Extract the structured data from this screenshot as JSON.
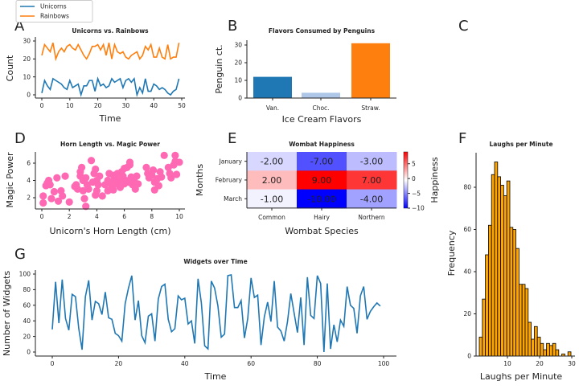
{
  "panel_letters": [
    "A",
    "B",
    "C",
    "D",
    "E",
    "F",
    "G"
  ],
  "chart_data": [
    {
      "id": "A",
      "type": "line",
      "title": "Unicorns vs. Rainbows",
      "xlabel": "Time",
      "ylabel": "Count",
      "xlim": [
        -2.5,
        51
      ],
      "ylim": [
        -2,
        31
      ],
      "xticks": [
        0,
        10,
        20,
        30,
        40,
        50
      ],
      "yticks": [
        0,
        10,
        20,
        30
      ],
      "legend": {
        "placement": "top-left, outside"
      },
      "series": [
        {
          "name": "Unicorns",
          "color": "#1f77b4",
          "values": [
            1,
            8,
            5,
            3,
            9,
            8,
            7,
            6,
            4,
            3,
            8,
            4,
            5,
            6,
            0,
            5,
            5,
            8,
            8,
            2,
            9,
            5,
            6,
            4,
            5,
            9,
            7,
            8,
            9,
            4,
            8,
            9,
            7,
            9,
            0,
            4,
            1,
            9,
            2,
            2,
            6,
            5,
            3,
            4,
            3,
            1,
            0,
            2,
            3,
            9
          ]
        },
        {
          "name": "Rainbows",
          "color": "#ff7f0e",
          "values": [
            22,
            28,
            26,
            24,
            29,
            20,
            24,
            26,
            24,
            27,
            28,
            26,
            25,
            28,
            25,
            22,
            20,
            23,
            27,
            27,
            28,
            25,
            28,
            22,
            29,
            20,
            28,
            24,
            23,
            24,
            21,
            20,
            22,
            23,
            24,
            20,
            22,
            27,
            25,
            28,
            21,
            21,
            26,
            21,
            20,
            28,
            20,
            21,
            21,
            29
          ]
        }
      ]
    },
    {
      "id": "B",
      "type": "bar",
      "title": "Flavors Consumed by Penguins",
      "xlabel": "Ice Cream Flavors",
      "ylabel": "Penguin ct.",
      "categories": [
        "Van.",
        "Choc.",
        "Straw."
      ],
      "values": [
        12,
        3,
        31
      ],
      "colors": [
        "#1f77b4",
        "#aec7e8",
        "#ff7f0e"
      ],
      "yticks": [
        0,
        10,
        20,
        30
      ],
      "ylim": [
        0,
        32.5
      ]
    },
    {
      "id": "D",
      "type": "scatter",
      "title": "Horn Length vs. Magic Power",
      "xlabel": "Unicorn's Horn Length (cm)",
      "ylabel": "Magic Power",
      "xticks": [
        0,
        2,
        4,
        6,
        8,
        10
      ],
      "yticks": [
        2,
        4,
        6
      ],
      "color": "#ff69b4",
      "points": [
        [
          0.1,
          2.2
        ],
        [
          0.1,
          1.4
        ],
        [
          0.3,
          3.4
        ],
        [
          0.4,
          3.7
        ],
        [
          0.5,
          4.0
        ],
        [
          0.6,
          3.5
        ],
        [
          0.7,
          1.9
        ],
        [
          0.9,
          2.7
        ],
        [
          1.1,
          4.3
        ],
        [
          1.2,
          1.6
        ],
        [
          1.4,
          2.8
        ],
        [
          1.5,
          2.2
        ],
        [
          1.7,
          4.5
        ],
        [
          2.0,
          1.5
        ],
        [
          2.4,
          3.3
        ],
        [
          2.5,
          3.5
        ],
        [
          2.6,
          3.0
        ],
        [
          2.8,
          4.5
        ],
        [
          2.8,
          5.0
        ],
        [
          2.9,
          5.5
        ],
        [
          3.0,
          2.8
        ],
        [
          3.0,
          4.0
        ],
        [
          3.1,
          1.9
        ],
        [
          3.2,
          1.0
        ],
        [
          3.2,
          4.3
        ],
        [
          3.3,
          3.5
        ],
        [
          3.4,
          3.0
        ],
        [
          3.6,
          6.3
        ],
        [
          3.7,
          3.8
        ],
        [
          3.8,
          4.8
        ],
        [
          3.9,
          2.3
        ],
        [
          3.9,
          5.3
        ],
        [
          4.0,
          4.0
        ],
        [
          4.0,
          2.8
        ],
        [
          4.1,
          3.5
        ],
        [
          4.2,
          4.5
        ],
        [
          4.4,
          2.2
        ],
        [
          4.6,
          3.5
        ],
        [
          4.8,
          4.0
        ],
        [
          4.8,
          2.8
        ],
        [
          4.9,
          4.8
        ],
        [
          5.0,
          3.8
        ],
        [
          5.1,
          3.3
        ],
        [
          5.2,
          4.6
        ],
        [
          5.2,
          2.9
        ],
        [
          5.3,
          4.2
        ],
        [
          5.4,
          3.6
        ],
        [
          5.5,
          4.8
        ],
        [
          5.6,
          4.0
        ],
        [
          5.7,
          3.2
        ],
        [
          5.8,
          5.0
        ],
        [
          5.9,
          4.5
        ],
        [
          6.0,
          3.6
        ],
        [
          6.0,
          5.4
        ],
        [
          6.1,
          4.0
        ],
        [
          6.2,
          5.5
        ],
        [
          6.3,
          3.8
        ],
        [
          6.4,
          5.8
        ],
        [
          6.4,
          6.1
        ],
        [
          6.5,
          4.4
        ],
        [
          6.6,
          3.5
        ],
        [
          6.7,
          4.0
        ],
        [
          6.8,
          3.0
        ],
        [
          6.9,
          4.5
        ],
        [
          7.0,
          3.6
        ],
        [
          7.6,
          5.5
        ],
        [
          7.7,
          4.8
        ],
        [
          7.8,
          4.3
        ],
        [
          8.0,
          4.6
        ],
        [
          8.1,
          5.2
        ],
        [
          8.2,
          3.8
        ],
        [
          8.2,
          2.9
        ],
        [
          8.4,
          4.2
        ],
        [
          8.5,
          3.4
        ],
        [
          8.6,
          5.0
        ],
        [
          8.7,
          4.4
        ],
        [
          8.9,
          6.9
        ],
        [
          9.2,
          5.5
        ],
        [
          9.3,
          4.8
        ],
        [
          9.4,
          4.3
        ],
        [
          9.6,
          5.8
        ],
        [
          9.7,
          6.9
        ],
        [
          9.7,
          6.2
        ],
        [
          9.8,
          4.7
        ],
        [
          10.0,
          6.1
        ]
      ]
    },
    {
      "id": "E",
      "type": "heatmap",
      "title": "Wombat Happiness",
      "xlabel": "Wombat Species",
      "ylabel": "Months",
      "x_categories": [
        "Common",
        "Hairy",
        "Northern"
      ],
      "y_categories": [
        "January",
        "February",
        "March"
      ],
      "values": [
        [
          -2,
          -7,
          -3
        ],
        [
          2,
          9,
          7
        ],
        [
          -1,
          -10,
          -4
        ]
      ],
      "cell_labels": [
        [
          "-2.00",
          "-7.00",
          "-3.00"
        ],
        [
          "2.00",
          "9.00",
          "7.00"
        ],
        [
          "-1.00",
          "-10.00",
          "-4.00"
        ]
      ],
      "colormap": "bwr",
      "vmin": -10,
      "vmax": 9,
      "colorbar": {
        "label": "Happiness",
        "ticks": [
          "5",
          "0",
          "−5",
          "−10"
        ],
        "tick_values": [
          5,
          0,
          -5,
          -10
        ]
      }
    },
    {
      "id": "F",
      "type": "bar",
      "title": "Laughs per Minute",
      "xlabel": "Laughs per Minute",
      "ylabel": "Frequency",
      "color": "#ffa500",
      "edgecolor": "#000000",
      "bin_range": [
        1.25,
        29.75
      ],
      "counts": [
        9,
        27,
        48,
        62,
        86,
        92,
        85,
        81,
        76,
        83,
        61,
        60,
        51,
        34,
        34,
        32,
        16,
        8,
        14,
        9,
        6,
        3,
        6,
        5,
        6,
        3,
        0,
        1,
        0,
        2
      ],
      "xticks": [
        10,
        20,
        30
      ],
      "yticks": [
        0,
        20,
        40,
        60,
        80
      ]
    },
    {
      "id": "G",
      "type": "line",
      "title": "Widgets over Time",
      "xlabel": "Time",
      "ylabel": "Number of Widgets",
      "color": "#1f77b4",
      "xticks": [
        0,
        20,
        40,
        60,
        80,
        100
      ],
      "yticks": [
        0,
        20,
        40,
        60,
        80,
        100
      ],
      "values": [
        29,
        90,
        37,
        93,
        43,
        28,
        74,
        71,
        30,
        3,
        71,
        92,
        41,
        65,
        62,
        48,
        77,
        44,
        42,
        24,
        21,
        14,
        62,
        82,
        98,
        41,
        66,
        21,
        12,
        46,
        49,
        14,
        68,
        84,
        87,
        42,
        26,
        30,
        72,
        67,
        69,
        36,
        40,
        11,
        94,
        63,
        8,
        4,
        91,
        82,
        59,
        19,
        23,
        98,
        99,
        57,
        57,
        66,
        18,
        43,
        95,
        70,
        73,
        9,
        45,
        64,
        39,
        91,
        32,
        27,
        14,
        39,
        75,
        50,
        25,
        70,
        9,
        96,
        47,
        43,
        98,
        88,
        0,
        88,
        4,
        35,
        13,
        41,
        33,
        84,
        60,
        56,
        24,
        72,
        84,
        42,
        52,
        58,
        63,
        59
      ]
    }
  ]
}
